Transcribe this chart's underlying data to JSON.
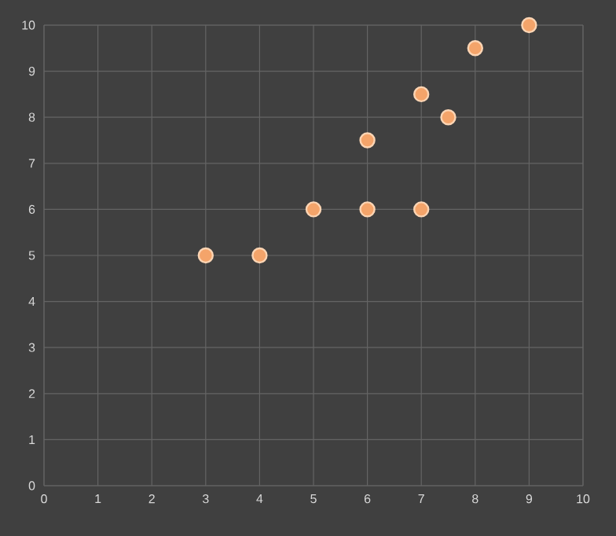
{
  "chart_data": {
    "type": "scatter",
    "x": [
      3,
      4,
      5,
      6,
      6,
      7,
      7,
      7.5,
      8,
      9
    ],
    "values": [
      5,
      5,
      6,
      6,
      7.5,
      6,
      8.5,
      8,
      9.5,
      10
    ],
    "color": "#f4a46a",
    "marker": "circle",
    "grid": true,
    "xlim": [
      0,
      10
    ],
    "ylim": [
      0,
      10
    ],
    "xticks": [
      0,
      1,
      2,
      3,
      4,
      5,
      6,
      7,
      8,
      9,
      10
    ],
    "yticks": [
      0,
      1,
      2,
      3,
      4,
      5,
      6,
      7,
      8,
      9,
      10
    ]
  }
}
